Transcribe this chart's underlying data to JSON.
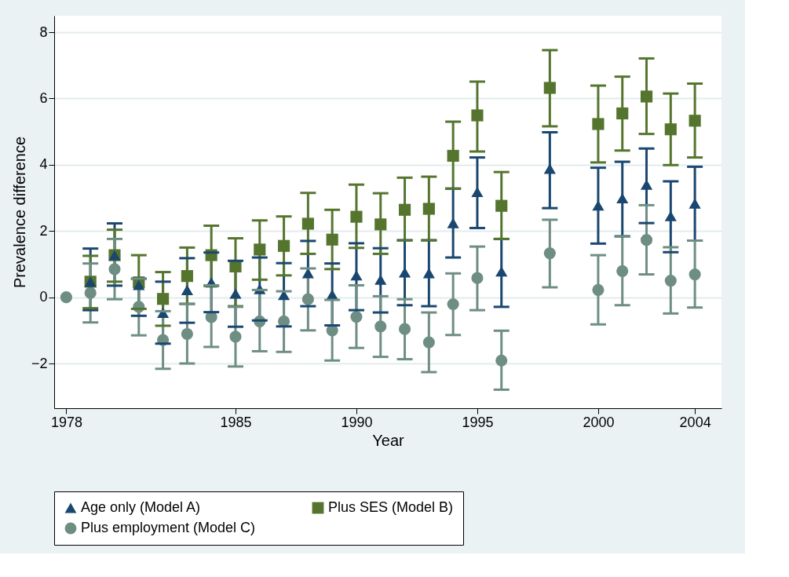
{
  "chart_data": {
    "type": "scatter",
    "xlabel": "Year",
    "ylabel": "Prevalence difference",
    "x": [
      1978,
      1979,
      1980,
      1981,
      1982,
      1983,
      1984,
      1985,
      1986,
      1987,
      1988,
      1989,
      1990,
      1991,
      1992,
      1993,
      1994,
      1995,
      1996,
      1998,
      2000,
      2001,
      2002,
      2003,
      2004
    ],
    "series": [
      {
        "name": "Age only (Model A)",
        "color": "#1a476f",
        "marker": "triangle",
        "values": [
          null,
          0.47,
          1.27,
          0.37,
          -0.47,
          0.22,
          0.45,
          0.11,
          0.25,
          0.07,
          0.73,
          0.08,
          0.66,
          0.53,
          0.75,
          0.73,
          2.24,
          3.18,
          0.78,
          3.88,
          2.77,
          2.99,
          3.4,
          2.45,
          2.83
        ],
        "errors": [
          null,
          [
            -0.39,
            1.47
          ],
          [
            0.35,
            2.23
          ],
          [
            -0.56,
            0.56
          ],
          [
            -1.4,
            0.47
          ],
          [
            -0.77,
            1.18
          ],
          [
            -0.45,
            1.35
          ],
          [
            -0.89,
            1.1
          ],
          [
            -0.7,
            1.2
          ],
          [
            -0.88,
            1.03
          ],
          [
            -0.27,
            1.7
          ],
          [
            -0.85,
            1.02
          ],
          [
            -0.39,
            1.63
          ],
          [
            -0.46,
            1.48
          ],
          [
            -0.24,
            1.72
          ],
          [
            -0.27,
            1.72
          ],
          [
            1.2,
            3.28
          ],
          [
            2.09,
            4.22
          ],
          [
            -0.29,
            1.76
          ],
          [
            2.69,
            4.98
          ],
          [
            1.62,
            3.91
          ],
          [
            1.84,
            4.09
          ],
          [
            2.24,
            4.49
          ],
          [
            1.36,
            3.5
          ],
          [
            1.71,
            3.94
          ]
        ]
      },
      {
        "name": "Plus SES (Model B)",
        "color": "#55752f",
        "marker": "square",
        "values": [
          null,
          0.47,
          1.27,
          0.45,
          -0.05,
          0.64,
          1.27,
          0.93,
          1.44,
          1.55,
          2.22,
          1.74,
          2.43,
          2.2,
          2.64,
          2.67,
          4.27,
          5.49,
          2.76,
          6.32,
          5.23,
          5.55,
          6.06,
          5.07,
          5.33
        ],
        "errors": [
          null,
          [
            -0.33,
            1.25
          ],
          [
            0.47,
            2.04
          ],
          [
            -0.35,
            1.27
          ],
          [
            -0.86,
            0.76
          ],
          [
            -0.2,
            1.5
          ],
          [
            0.34,
            2.16
          ],
          [
            -0.27,
            1.78
          ],
          [
            0.53,
            2.32
          ],
          [
            0.66,
            2.44
          ],
          [
            1.31,
            3.15
          ],
          [
            0.85,
            2.64
          ],
          [
            1.49,
            3.4
          ],
          [
            1.31,
            3.14
          ],
          [
            1.72,
            3.61
          ],
          [
            1.72,
            3.64
          ],
          [
            3.28,
            5.3
          ],
          [
            4.4,
            6.51
          ],
          [
            1.76,
            3.78
          ],
          [
            5.16,
            7.46
          ],
          [
            4.07,
            6.39
          ],
          [
            4.43,
            6.66
          ],
          [
            4.93,
            7.21
          ],
          [
            3.99,
            6.15
          ],
          [
            4.22,
            6.45
          ]
        ]
      },
      {
        "name": "Plus employment (Model C)",
        "color": "#6e8e84",
        "marker": "circle",
        "values": [
          0,
          0.13,
          0.85,
          -0.29,
          -1.29,
          -1.11,
          -0.6,
          -1.19,
          -0.73,
          -0.73,
          -0.06,
          -1.0,
          -0.59,
          -0.88,
          -0.96,
          -1.36,
          -0.21,
          0.58,
          -1.91,
          1.33,
          0.22,
          0.79,
          1.73,
          0.5,
          0.69
        ],
        "errors": [
          null,
          [
            -0.76,
            1.02
          ],
          [
            -0.06,
            1.76
          ],
          [
            -1.15,
            0.56
          ],
          [
            -2.16,
            -0.42
          ],
          [
            -2.0,
            -0.2
          ],
          [
            -1.5,
            0.36
          ],
          [
            -2.09,
            -0.29
          ],
          [
            -1.63,
            0.22
          ],
          [
            -1.65,
            0.18
          ],
          [
            -1.0,
            0.87
          ],
          [
            -1.91,
            -0.08
          ],
          [
            -1.53,
            0.36
          ],
          [
            -1.8,
            0.03
          ],
          [
            -1.87,
            -0.06
          ],
          [
            -2.26,
            -0.46
          ],
          [
            -1.14,
            0.72
          ],
          [
            -0.39,
            1.53
          ],
          [
            -2.79,
            -1.01
          ],
          [
            0.3,
            2.34
          ],
          [
            -0.82,
            1.27
          ],
          [
            -0.24,
            1.84
          ],
          [
            0.69,
            2.78
          ],
          [
            -0.49,
            1.51
          ],
          [
            -0.31,
            1.71
          ]
        ]
      }
    ],
    "xlim": [
      1977.5,
      2005.1
    ],
    "xticks": [
      1978,
      1985,
      1990,
      1995,
      2000,
      2004
    ],
    "ylim": [
      -3.35,
      8.5
    ],
    "yticks": [
      {
        "value": -2,
        "label": "−2"
      },
      0,
      2,
      4,
      6,
      8
    ],
    "grid": "y",
    "legend": "bottom"
  }
}
